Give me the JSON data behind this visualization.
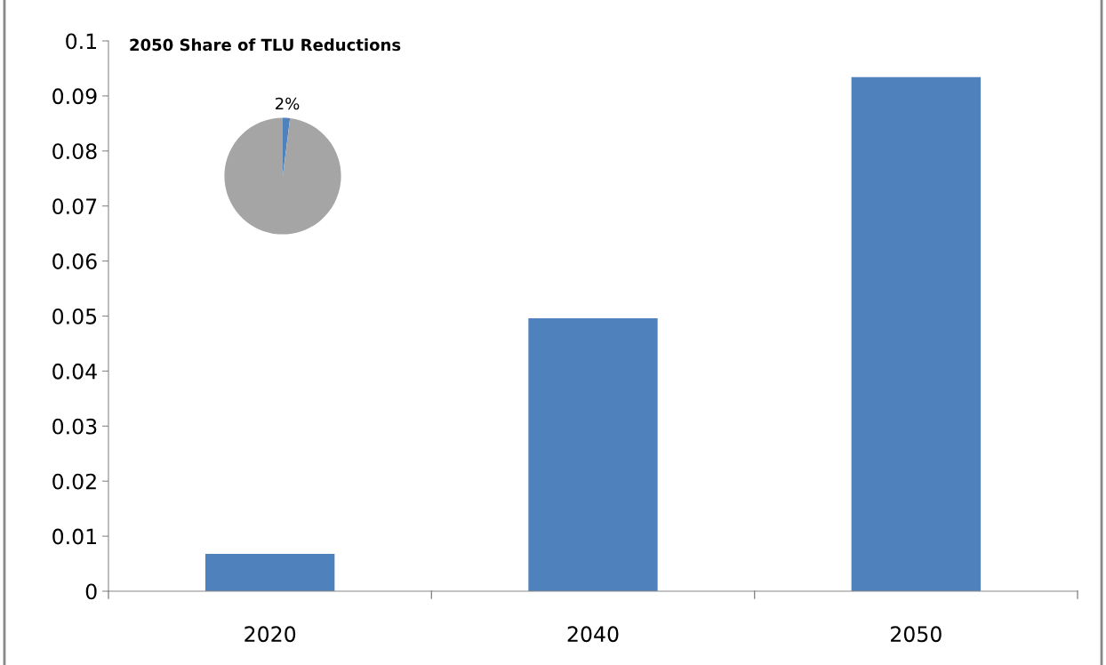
{
  "chart_data": [
    {
      "type": "bar",
      "categories": [
        "2020",
        "2040",
        "2050"
      ],
      "series": [
        {
          "color": "#4f81bd",
          "values": [
            0.0068,
            0.0496,
            0.0934
          ]
        }
      ],
      "ylim": [
        0,
        0.1
      ],
      "yticks": [
        0,
        0.01,
        0.02,
        0.03,
        0.04,
        0.05,
        0.06,
        0.07,
        0.08,
        0.09,
        0.1
      ],
      "grid": false,
      "legend": false
    },
    {
      "type": "pie",
      "title": "2050 Share of TLU Reductions",
      "categories": [
        null,
        null
      ],
      "values": [
        2,
        98
      ],
      "colors": [
        "#4f81bd",
        "#a5a5a5"
      ],
      "value_labels": [
        "2%",
        null
      ]
    }
  ]
}
